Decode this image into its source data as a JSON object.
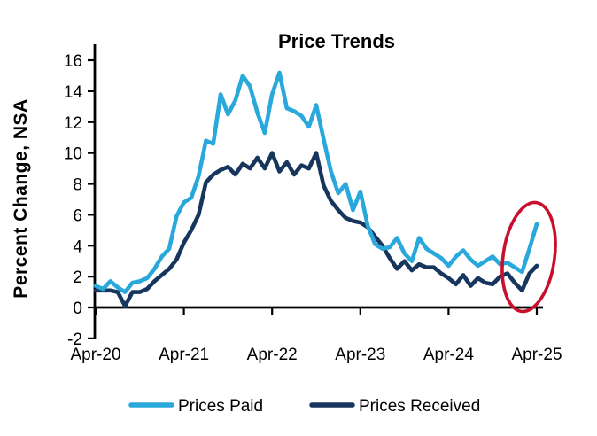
{
  "chart_data": {
    "type": "line",
    "title": "Price Trends",
    "ylabel": "Percent Change, NSA",
    "xlabel": "",
    "x_start": "Apr-2020",
    "x_end": "Apr-2025",
    "frequency": "monthly",
    "x_tick_labels": [
      "Apr-20",
      "Apr-21",
      "Apr-22",
      "Apr-23",
      "Apr-24",
      "Apr-25"
    ],
    "y_ticks": [
      16,
      14,
      12,
      10,
      8,
      6,
      4,
      2,
      0,
      -2
    ],
    "ylim": [
      -2,
      16
    ],
    "grid": false,
    "legend_position": "bottom",
    "axis_color": "#000000",
    "series": [
      {
        "name": "Prices Paid",
        "color": "#29A8DC",
        "values": [
          1.4,
          1.2,
          1.7,
          1.3,
          1.0,
          1.6,
          1.7,
          1.9,
          2.5,
          3.3,
          3.8,
          5.9,
          6.8,
          7.1,
          8.5,
          10.8,
          10.6,
          13.8,
          12.5,
          13.4,
          15.0,
          14.3,
          12.6,
          11.3,
          13.8,
          15.2,
          12.9,
          12.7,
          12.4,
          11.7,
          13.1,
          10.9,
          8.8,
          7.4,
          8.0,
          6.3,
          7.5,
          5.3,
          4.1,
          3.8,
          3.9,
          4.5,
          3.5,
          3.0,
          4.5,
          3.8,
          3.5,
          3.2,
          2.7,
          3.3,
          3.7,
          3.1,
          2.7,
          3.0,
          3.3,
          2.8,
          2.9,
          2.6,
          2.3,
          3.8,
          5.4
        ]
      },
      {
        "name": "Prices Received",
        "color": "#17365D",
        "values": [
          1.1,
          1.1,
          1.1,
          1.0,
          0.1,
          1.0,
          1.0,
          1.2,
          1.7,
          2.1,
          2.5,
          3.1,
          4.2,
          5.0,
          6.0,
          8.1,
          8.6,
          8.9,
          9.1,
          8.6,
          9.3,
          9.0,
          9.7,
          9.0,
          10.0,
          8.8,
          9.4,
          8.6,
          9.2,
          9.0,
          10.0,
          7.9,
          6.9,
          6.3,
          5.8,
          5.6,
          5.5,
          5.2,
          4.6,
          4.0,
          3.2,
          2.5,
          3.0,
          2.4,
          2.8,
          2.6,
          2.6,
          2.2,
          1.9,
          1.5,
          2.1,
          1.4,
          1.9,
          1.6,
          1.5,
          2.0,
          2.2,
          1.6,
          1.1,
          2.2,
          2.7
        ]
      }
    ],
    "annotation": {
      "shape": "ellipse",
      "color": "#C8102E",
      "highlights": "sharp rise of Prices Paid to 5.4 at Apr-25"
    }
  }
}
